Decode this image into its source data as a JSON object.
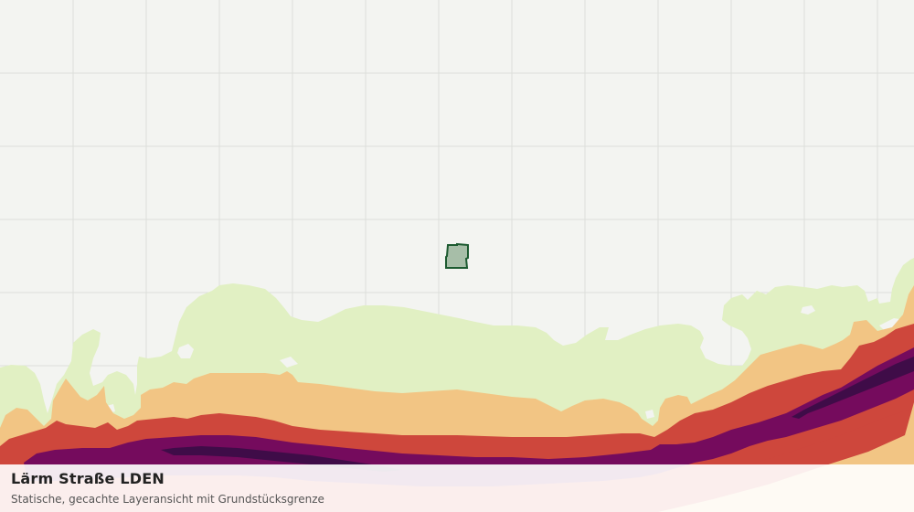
{
  "caption": {
    "title": "Lärm Straße LDEN",
    "subtitle": "Statische, gecachte Layeransicht mit Grundstücksgrenze"
  },
  "colors": {
    "background": "#f3f4f1",
    "grid": "#dcdedb",
    "band_1": "#e1f0c3",
    "band_2": "#f2c584",
    "band_3": "#ce473c",
    "band_4": "#750b5d",
    "band_5": "#3f0c48",
    "parcel_fill": "#a7bea8",
    "parcel_outline": "#1c5a30"
  },
  "layers": {
    "noise_bands": [
      "band_1",
      "band_2",
      "band_3",
      "band_4",
      "band_5"
    ],
    "parcel": "plot-boundary"
  }
}
